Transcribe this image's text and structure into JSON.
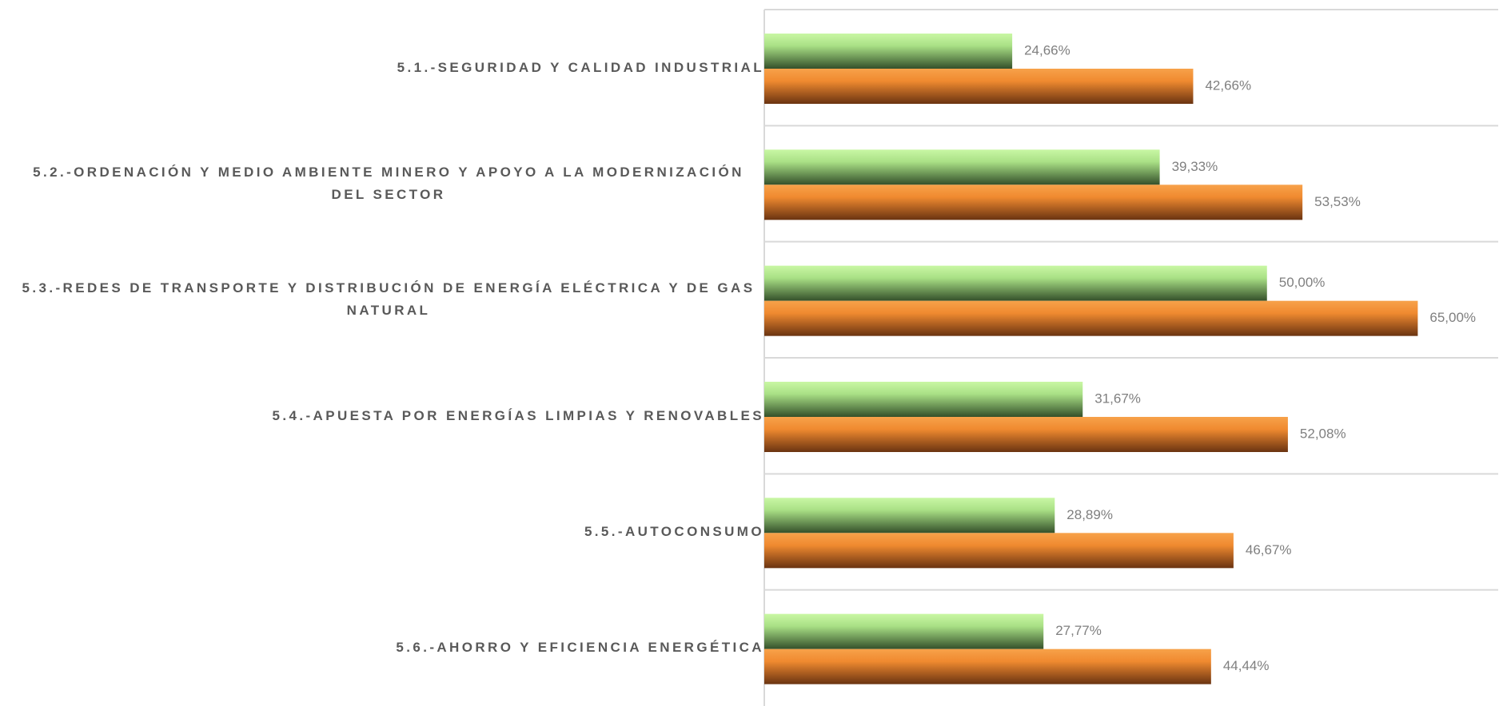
{
  "chart_data": {
    "type": "bar",
    "orientation": "horizontal",
    "categories": [
      "5.1.-SEGURIDAD Y CALIDAD INDUSTRIAL",
      "5.2.-ORDENACIÓN Y MEDIO AMBIENTE MINERO Y APOYO A LA MODERNIZACIÓN DEL SECTOR",
      "5.3.-REDES DE TRANSPORTE Y DISTRIBUCIÓN DE ENERGÍA ELÉCTRICA Y DE GAS NATURAL",
      "5.4.-APUESTA POR ENERGÍAS LIMPIAS Y RENOVABLES",
      "5.5.-AUTOCONSUMO",
      "5.6.-AHORRO Y EFICIENCIA ENERGÉTICA"
    ],
    "series": [
      {
        "color": "#8fd36a",
        "values": [
          24.66,
          39.33,
          50.0,
          31.67,
          28.89,
          27.77
        ],
        "value_labels": [
          "24,66%",
          "39,33%",
          "50,00%",
          "31,67%",
          "28,89%",
          "27,77%"
        ]
      },
      {
        "color": "#f08a30",
        "values": [
          42.66,
          53.53,
          65.0,
          52.08,
          46.67,
          44.44
        ],
        "value_labels": [
          "42,66%",
          "53,53%",
          "65,00%",
          "52,08%",
          "46,67%",
          "44,44%"
        ]
      }
    ],
    "xlim": [
      0,
      73
    ],
    "grid": true
  }
}
